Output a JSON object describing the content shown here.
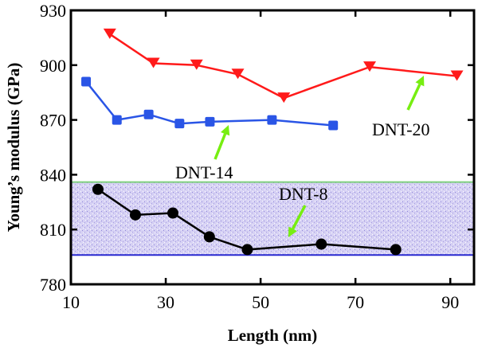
{
  "chart_data": {
    "type": "line",
    "title": "",
    "xlabel": "Length (nm)",
    "ylabel": "Young’s modulus (GPa)",
    "xlim": [
      10,
      95
    ],
    "ylim": [
      780,
      930
    ],
    "xticks": [
      10,
      30,
      50,
      70,
      90
    ],
    "yticks": [
      780,
      810,
      840,
      870,
      900,
      930
    ],
    "grid": false,
    "band": {
      "y": [
        796,
        836
      ],
      "fill": "#c9c3ee",
      "top_color": "#7fd07f",
      "bottom_color": "#2a2ad0"
    },
    "series": [
      {
        "name": "DNT-20",
        "color": "#ff1a1a",
        "marker": "triangle-down",
        "x": [
          18.2,
          27.4,
          36.5,
          45.2,
          54.9,
          73.0,
          91.4
        ],
        "y": [
          917,
          901,
          900,
          895,
          882,
          899,
          894
        ]
      },
      {
        "name": "DNT-14",
        "color": "#2a55e6",
        "marker": "square",
        "x": [
          13.2,
          19.7,
          26.4,
          32.9,
          39.3,
          52.4,
          65.3
        ],
        "y": [
          891,
          870,
          873,
          868,
          869,
          870,
          867
        ]
      },
      {
        "name": "DNT-8",
        "color": "#000000",
        "marker": "circle",
        "x": [
          15.7,
          23.6,
          31.5,
          39.2,
          47.2,
          62.8,
          78.5
        ],
        "y": [
          832,
          818,
          819,
          806,
          799,
          802,
          799
        ]
      }
    ],
    "annotations": [
      {
        "text": "DNT-20",
        "arrow_color": "#77ee11"
      },
      {
        "text": "DNT-14",
        "arrow_color": "#77ee11"
      },
      {
        "text": "DNT-8",
        "arrow_color": "#77ee11"
      }
    ]
  }
}
